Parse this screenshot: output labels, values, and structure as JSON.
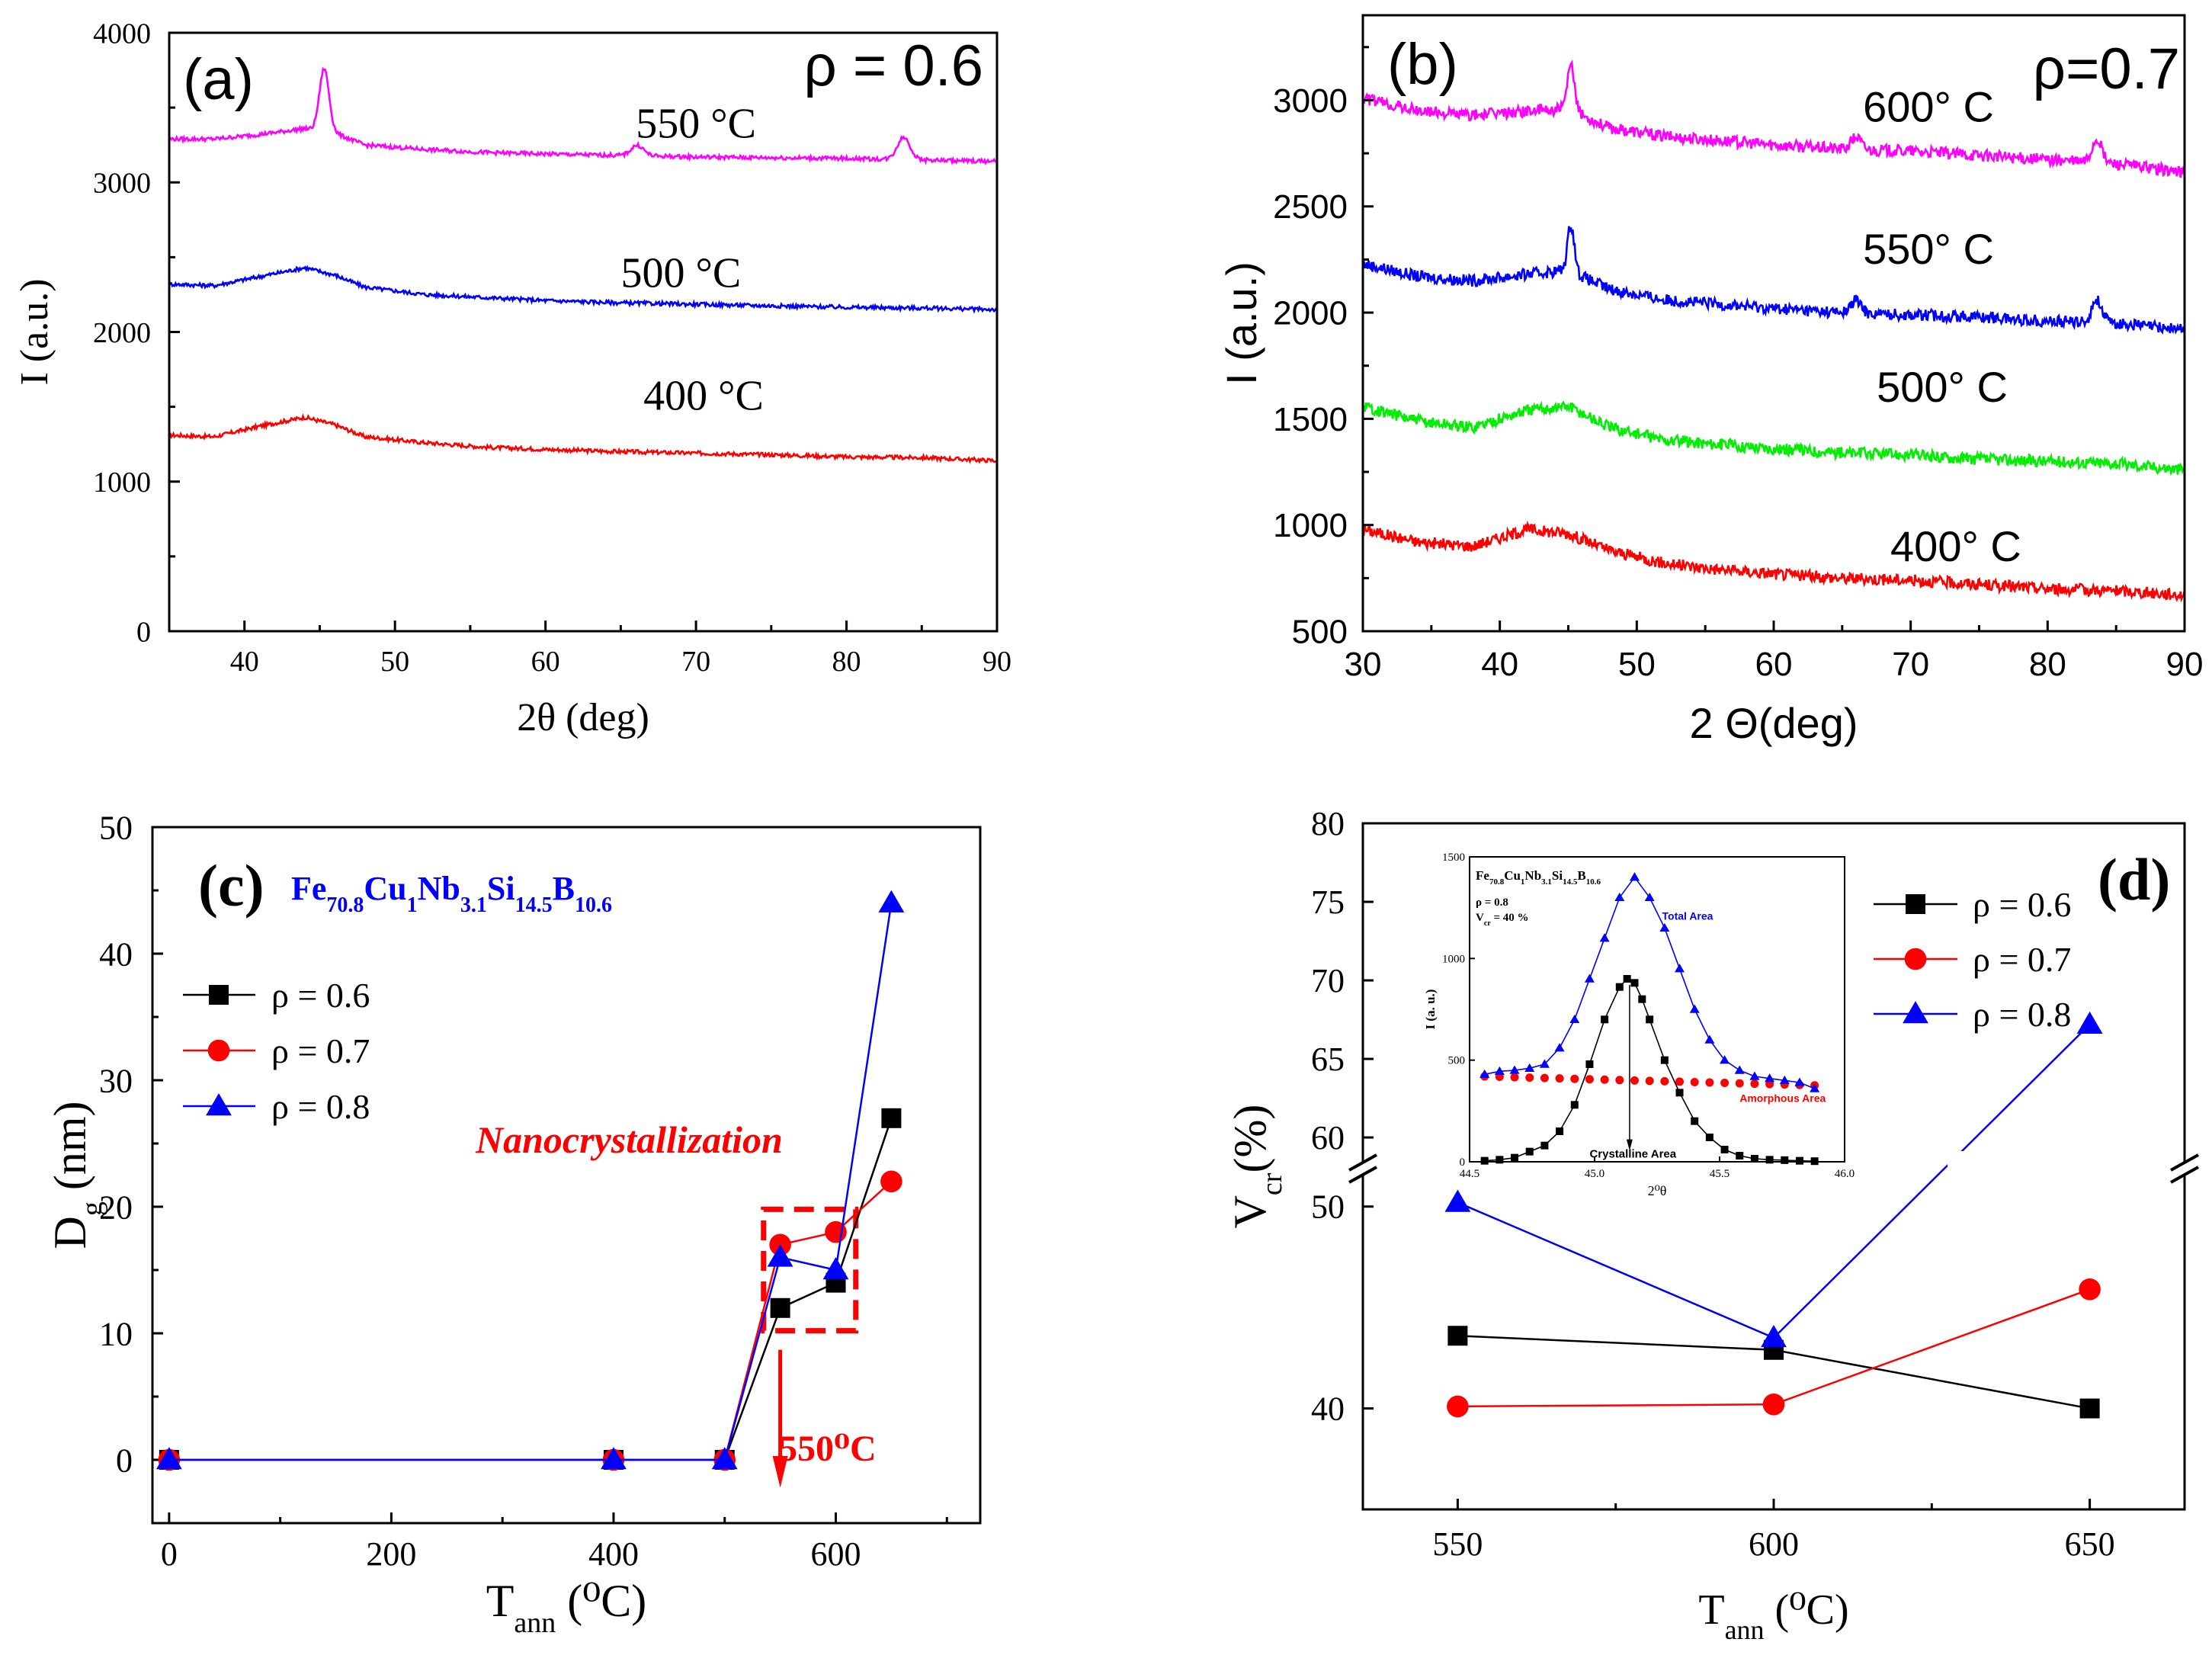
{
  "chart_data": [
    {
      "id": "a",
      "type": "line",
      "panel_label": "(a)",
      "annotation": "ρ = 0.6",
      "xlabel": "2θ (deg)",
      "ylabel": "I (a.u.)",
      "xlim": [
        35,
        90
      ],
      "ylim": [
        0,
        4000
      ],
      "xticks": [
        40,
        50,
        60,
        70,
        80,
        90
      ],
      "yticks": [
        0,
        1000,
        2000,
        3000,
        4000
      ],
      "series": [
        {
          "name": "400 °C",
          "color": "#ff0000",
          "points": [
            [
              35,
              1310
            ],
            [
              38,
              1300
            ],
            [
              41,
              1370
            ],
            [
              44,
              1430
            ],
            [
              46,
              1380
            ],
            [
              48,
              1300
            ],
            [
              52,
              1260
            ],
            [
              56,
              1230
            ],
            [
              60,
              1215
            ],
            [
              65,
              1200
            ],
            [
              70,
              1190
            ],
            [
              75,
              1180
            ],
            [
              80,
              1165
            ],
            [
              85,
              1160
            ],
            [
              90,
              1140
            ]
          ],
          "peaks": []
        },
        {
          "name": "500 °C",
          "color": "#0000ff",
          "points": [
            [
              35,
              2320
            ],
            [
              38,
              2310
            ],
            [
              41,
              2370
            ],
            [
              44,
              2430
            ],
            [
              46,
              2380
            ],
            [
              48,
              2300
            ],
            [
              52,
              2250
            ],
            [
              56,
              2230
            ],
            [
              60,
              2210
            ],
            [
              65,
              2195
            ],
            [
              70,
              2185
            ],
            [
              75,
              2175
            ],
            [
              80,
              2165
            ],
            [
              85,
              2160
            ],
            [
              90,
              2150
            ]
          ],
          "peaks": []
        },
        {
          "name": "550 °C",
          "color": "#ff00ff",
          "points": [
            [
              35,
              3290
            ],
            [
              38,
              3290
            ],
            [
              41,
              3320
            ],
            [
              44,
              3360
            ],
            [
              46,
              3330
            ],
            [
              48,
              3250
            ],
            [
              52,
              3220
            ],
            [
              56,
              3200
            ],
            [
              60,
              3190
            ],
            [
              65,
              3180
            ],
            [
              70,
              3170
            ],
            [
              75,
              3165
            ],
            [
              80,
              3160
            ],
            [
              85,
              3150
            ],
            [
              90,
              3140
            ]
          ],
          "peaks": [
            [
              45.3,
              420,
              0.45
            ],
            [
              66.1,
              70,
              0.6
            ],
            [
              83.8,
              150,
              0.6
            ]
          ]
        }
      ],
      "curve_labels": [
        {
          "text": "550 °C",
          "x": 70,
          "y": 3300
        },
        {
          "text": "500 °C",
          "x": 69,
          "y": 2300
        },
        {
          "text": "400 °C",
          "x": 70.5,
          "y": 1480
        }
      ]
    },
    {
      "id": "b",
      "type": "line",
      "panel_label": "(b)",
      "annotation": "ρ=0.7",
      "xlabel": "2 Θ(deg)",
      "ylabel": "I (a.u.)",
      "xlim": [
        30,
        90
      ],
      "ylim": [
        500,
        3400
      ],
      "xticks": [
        30,
        40,
        50,
        60,
        70,
        80,
        90
      ],
      "yticks": [
        500,
        1000,
        1500,
        2000,
        2500,
        3000
      ],
      "series": [
        {
          "name": "400° C",
          "color": "#ff0000",
          "points": [
            [
              30,
              980
            ],
            [
              34,
              920
            ],
            [
              38,
              900
            ],
            [
              42,
              980
            ],
            [
              45,
              960
            ],
            [
              48,
              880
            ],
            [
              52,
              820
            ],
            [
              56,
              790
            ],
            [
              60,
              770
            ],
            [
              65,
              750
            ],
            [
              70,
              740
            ],
            [
              75,
              720
            ],
            [
              80,
              700
            ],
            [
              85,
              690
            ],
            [
              90,
              670
            ]
          ],
          "peaks": []
        },
        {
          "name": "500° C",
          "color": "#00ee00",
          "points": [
            [
              30,
              1560
            ],
            [
              34,
              1490
            ],
            [
              38,
              1460
            ],
            [
              42,
              1540
            ],
            [
              45,
              1560
            ],
            [
              48,
              1460
            ],
            [
              52,
              1400
            ],
            [
              56,
              1380
            ],
            [
              60,
              1360
            ],
            [
              65,
              1340
            ],
            [
              70,
              1330
            ],
            [
              75,
              1310
            ],
            [
              80,
              1300
            ],
            [
              85,
              1290
            ],
            [
              90,
              1260
            ]
          ],
          "peaks": []
        },
        {
          "name": "550° C",
          "color": "#0000ff",
          "points": [
            [
              30,
              2230
            ],
            [
              34,
              2170
            ],
            [
              38,
              2150
            ],
            [
              42,
              2180
            ],
            [
              45,
              2200
            ],
            [
              48,
              2110
            ],
            [
              52,
              2060
            ],
            [
              56,
              2040
            ],
            [
              60,
              2020
            ],
            [
              65,
              2000
            ],
            [
              70,
              1990
            ],
            [
              75,
              1980
            ],
            [
              80,
              1960
            ],
            [
              85,
              1950
            ],
            [
              90,
              1920
            ]
          ],
          "peaks": [
            [
              45.2,
              220,
              0.35
            ],
            [
              66.0,
              60,
              0.5
            ],
            [
              83.6,
              110,
              0.5
            ]
          ]
        },
        {
          "name": "600° C",
          "color": "#ff00ff",
          "points": [
            [
              30,
              3010
            ],
            [
              34,
              2950
            ],
            [
              38,
              2930
            ],
            [
              42,
              2950
            ],
            [
              45,
              2960
            ],
            [
              48,
              2870
            ],
            [
              52,
              2830
            ],
            [
              56,
              2810
            ],
            [
              60,
              2790
            ],
            [
              65,
              2770
            ],
            [
              70,
              2760
            ],
            [
              75,
              2740
            ],
            [
              80,
              2720
            ],
            [
              85,
              2700
            ],
            [
              90,
              2660
            ]
          ],
          "peaks": [
            [
              45.2,
              210,
              0.35
            ],
            [
              66.0,
              60,
              0.5
            ],
            [
              83.6,
              110,
              0.5
            ]
          ]
        }
      ],
      "curve_labels": [
        {
          "text": "600° C",
          "x": 71.3,
          "y": 2900
        },
        {
          "text": "550° C",
          "x": 71.3,
          "y": 2230
        },
        {
          "text": "500° C",
          "x": 72.3,
          "y": 1580
        },
        {
          "text": "400° C",
          "x": 73.3,
          "y": 830
        }
      ]
    },
    {
      "id": "c",
      "type": "line",
      "panel_label": "(c)",
      "composition": {
        "elements": [
          "Fe",
          "Cu",
          "Nb",
          "Si",
          "B"
        ],
        "subscripts": [
          "70.8",
          "1",
          "3.1",
          "14.5",
          "10.6"
        ]
      },
      "note": "Nanocrystallization",
      "arrow_label": "550⁰C",
      "xlabel": "T",
      "xlabel_sub": "ann",
      "xlabel_unit": "(⁰C)",
      "ylabel": "D",
      "ylabel_sub": "g",
      "ylabel_unit": "(nm)",
      "xlim": [
        -15,
        730
      ],
      "ylim": [
        -5,
        50
      ],
      "xticks": [
        0,
        200,
        400,
        600
      ],
      "yticks": [
        0,
        10,
        20,
        30,
        40,
        50
      ],
      "categories": [
        0,
        400,
        500,
        550,
        600,
        650
      ],
      "series": [
        {
          "name": "ρ = 0.6",
          "color": "#000000",
          "marker": "square",
          "values": [
            0,
            0,
            0,
            12,
            14,
            27
          ]
        },
        {
          "name": "ρ = 0.7",
          "color": "#ff0000",
          "marker": "circle",
          "values": [
            0,
            0,
            0,
            17,
            18,
            22
          ]
        },
        {
          "name": "ρ = 0.8",
          "color": "#0000ff",
          "marker": "triangle",
          "values": [
            0,
            0,
            0,
            16,
            15,
            44
          ]
        }
      ]
    },
    {
      "id": "d",
      "type": "line",
      "panel_label": "(d)",
      "xlabel": "T",
      "xlabel_sub": "ann",
      "xlabel_unit": "(⁰C)",
      "ylabel": "V",
      "ylabel_sub": "cr",
      "ylabel_unit": "(%)",
      "xlim": [
        535,
        665
      ],
      "ylim": [
        35,
        80
      ],
      "axis_break": {
        "lower": [
          35,
          51.5
        ],
        "upper": [
          58.5,
          80
        ]
      },
      "xticks": [
        550,
        600,
        650
      ],
      "yticks": [
        40,
        50,
        60,
        65,
        70,
        75,
        80
      ],
      "categories": [
        550,
        600,
        650
      ],
      "series": [
        {
          "name": "ρ = 0.6",
          "color": "#000000",
          "marker": "square",
          "values": [
            43.6,
            42.9,
            40.0
          ]
        },
        {
          "name": "ρ = 0.7",
          "color": "#ff0000",
          "marker": "circle",
          "values": [
            40.1,
            40.2,
            45.9
          ]
        },
        {
          "name": "ρ = 0.8",
          "color": "#0000ff",
          "marker": "triangle",
          "values": [
            50.2,
            43.5,
            67.2
          ]
        }
      ],
      "inset": {
        "composition": {
          "elements": [
            "Fe",
            "Cu",
            "Nb",
            "Si",
            "B"
          ],
          "subscripts": [
            "70.8",
            "1",
            "3.1",
            "14.5",
            "10.6"
          ]
        },
        "rho_text": "ρ = 0.8",
        "vcr_text": "= 40 %",
        "vcr_symbol": "V",
        "vcr_sub": "cr",
        "xlabel": "2⁰θ",
        "ylabel": "I (a. u.)",
        "xlim": [
          44.5,
          46.0
        ],
        "ylim": [
          0,
          1500
        ],
        "xticks": [
          44.5,
          45.0,
          45.5,
          46.0
        ],
        "xtick_labels": [
          "44.5",
          "45.0",
          "45.5",
          "46.0"
        ],
        "yticks": [
          0,
          500,
          1000,
          1500
        ],
        "labels": {
          "total": "Total Area",
          "amorphous": "Amorphous Area",
          "crystalline": "Crystalline Area"
        },
        "total_area": {
          "color": "#0000ff",
          "x": [
            44.56,
            44.62,
            44.68,
            44.74,
            44.8,
            44.86,
            44.92,
            44.98,
            45.04,
            45.1,
            45.16,
            45.22,
            45.28,
            45.34,
            45.4,
            45.46,
            45.52,
            45.58,
            45.64,
            45.7,
            45.76,
            45.82,
            45.88
          ],
          "y": [
            430,
            445,
            450,
            460,
            480,
            560,
            700,
            900,
            1100,
            1300,
            1400,
            1300,
            1150,
            950,
            750,
            600,
            500,
            450,
            420,
            410,
            400,
            390,
            360
          ]
        },
        "amorphous_area": {
          "color": "#ff0000",
          "x": [
            44.56,
            44.62,
            44.68,
            44.74,
            44.8,
            44.86,
            44.92,
            44.98,
            45.04,
            45.1,
            45.16,
            45.22,
            45.28,
            45.34,
            45.4,
            45.46,
            45.52,
            45.58,
            45.64,
            45.7,
            45.76,
            45.82,
            45.88
          ],
          "y": [
            420,
            418,
            416,
            414,
            412,
            410,
            408,
            406,
            404,
            402,
            400,
            398,
            396,
            394,
            392,
            390,
            388,
            386,
            384,
            382,
            380,
            378,
            376
          ]
        },
        "crystalline_area": {
          "color": "#000000",
          "x": [
            44.56,
            44.62,
            44.68,
            44.74,
            44.8,
            44.86,
            44.92,
            44.98,
            45.04,
            45.1,
            45.13,
            45.16,
            45.19,
            45.22,
            45.28,
            45.34,
            45.4,
            45.46,
            45.52,
            45.58,
            45.64,
            45.7,
            45.76,
            45.82,
            45.88
          ],
          "y": [
            5,
            10,
            20,
            50,
            80,
            150,
            280,
            480,
            700,
            860,
            900,
            880,
            800,
            700,
            500,
            340,
            200,
            120,
            60,
            30,
            15,
            10,
            8,
            5,
            3
          ]
        }
      }
    }
  ]
}
